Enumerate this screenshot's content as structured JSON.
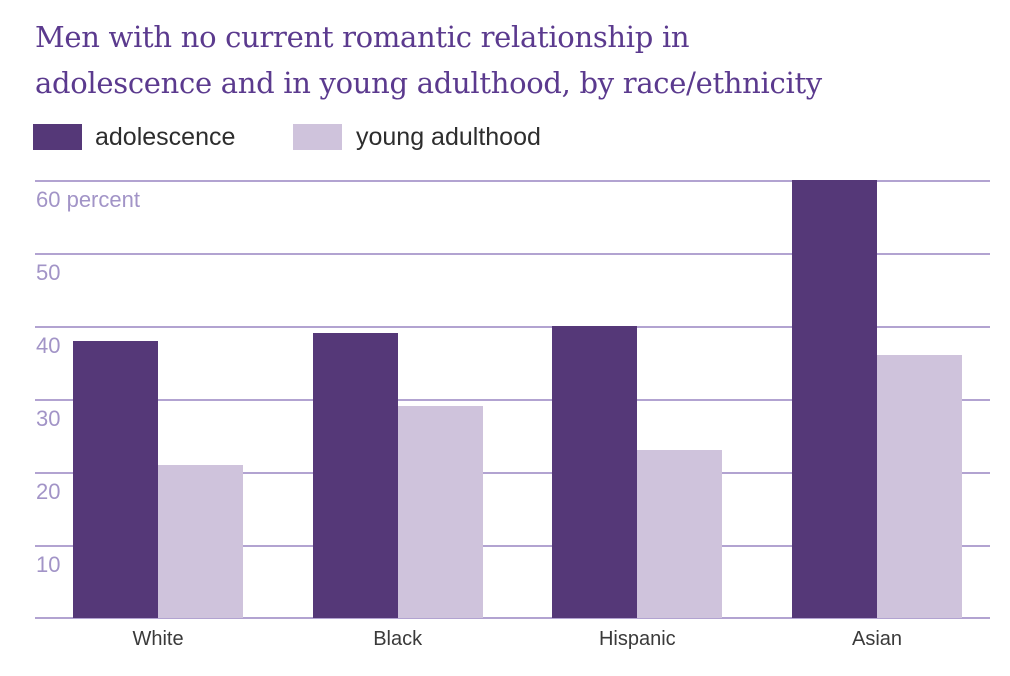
{
  "title": {
    "line1": "Men with no current romantic relationship in",
    "line2": "adolescence and in young adulthood, by race/ethnicity"
  },
  "legend": [
    {
      "label": "adolescence",
      "color": "#553878"
    },
    {
      "label": "young adulthood",
      "color": "#cfc3dc"
    }
  ],
  "chart_data": {
    "type": "bar",
    "title": "Men with no current romantic relationship in adolescence and in young adulthood, by race/ethnicity",
    "categories": [
      "White",
      "Black",
      "Hispanic",
      "Asian"
    ],
    "series": [
      {
        "name": "adolescence",
        "color": "#553878",
        "values": [
          38,
          39,
          40,
          60
        ]
      },
      {
        "name": "young adulthood",
        "color": "#cfc3dc",
        "values": [
          21,
          29,
          23,
          36
        ]
      }
    ],
    "yticks": [
      {
        "value": 60,
        "label": "60 percent"
      },
      {
        "value": 50,
        "label": "50"
      },
      {
        "value": 40,
        "label": "40"
      },
      {
        "value": 30,
        "label": "30"
      },
      {
        "value": 20,
        "label": "20"
      },
      {
        "value": 10,
        "label": "10"
      }
    ],
    "ylim": [
      0,
      60
    ],
    "unit": "percent",
    "grid": "horizontal",
    "legend_position": "top-left"
  },
  "colors": {
    "title": "#5b3a8e",
    "gridline": "#b2a3d1",
    "ytick_label": "#a294c7",
    "axis_text": "#3a3a3a",
    "background": "#ffffff"
  }
}
